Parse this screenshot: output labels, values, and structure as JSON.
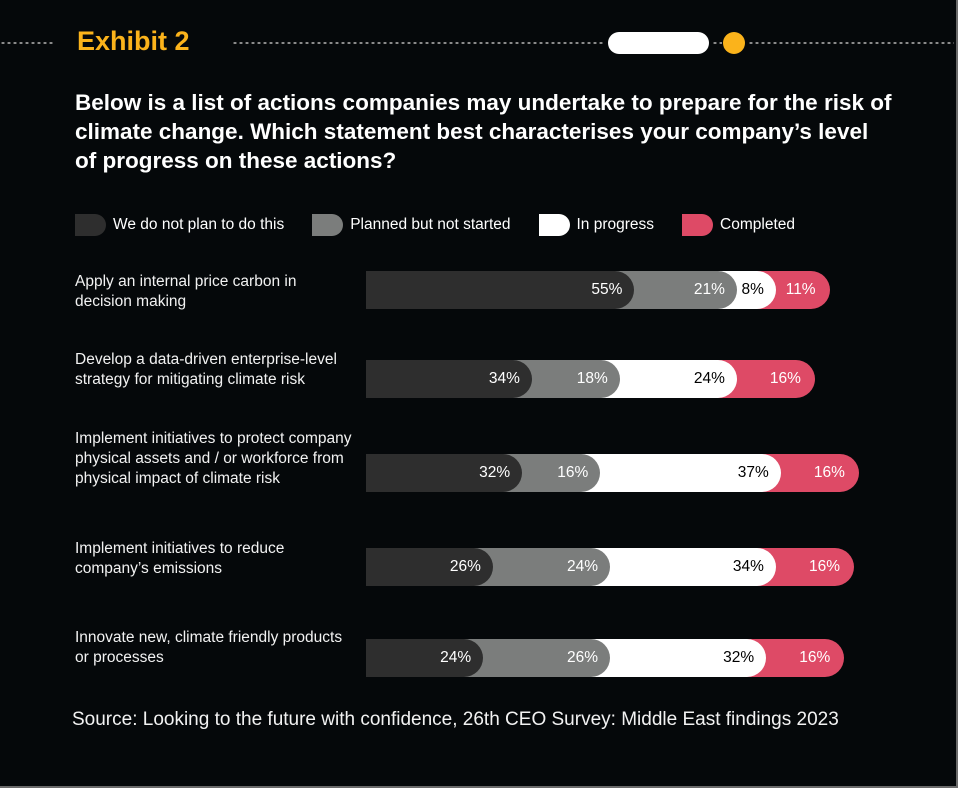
{
  "header": {
    "exhibit_title": "Exhibit 2",
    "question": "Below is a list of actions companies may undertake to prepare for the risk of climate change. Which statement best characterises your company’s level of progress on these actions?"
  },
  "colors": {
    "accent": "#fbb31b",
    "background": "#05080a"
  },
  "chart_data": {
    "type": "bar",
    "orientation": "horizontal",
    "stacked": true,
    "title": "Below is a list of actions companies may undertake to prepare for the risk of climate change. Which statement best characterises your company’s level of progress on these actions?",
    "xlabel": "",
    "ylabel": "",
    "unit": "%",
    "legend_position": "top",
    "categories": [
      "Apply an internal price carbon in decision making",
      "Develop a data-driven enterprise-level strategy for mitigating climate risk",
      "Implement initiatives to protect company physical assets and / or workforce from physical impact of climate risk",
      "Implement initiatives to reduce company’s emissions",
      "Innovate new, climate friendly products or processes"
    ],
    "series": [
      {
        "name": "We do not plan to do this",
        "color": "#2e2e2e",
        "label_color": "#ffffff",
        "values": [
          55,
          34,
          32,
          26,
          24
        ]
      },
      {
        "name": "Planned but not started",
        "color": "#7b7d7c",
        "label_color": "#ffffff",
        "values": [
          21,
          18,
          16,
          24,
          26
        ]
      },
      {
        "name": "In progress",
        "color": "#ffffff",
        "label_color": "#000000",
        "values": [
          8,
          24,
          37,
          34,
          32
        ]
      },
      {
        "name": "Completed",
        "color": "#de4a66",
        "label_color": "#ffffff",
        "values": [
          11,
          16,
          16,
          16,
          16
        ]
      }
    ],
    "data_labels": [
      [
        "55%",
        "21%",
        "8%",
        "11%"
      ],
      [
        "34%",
        "18%",
        "24%",
        "16%"
      ],
      [
        "32%",
        "16%",
        "37%",
        "16%"
      ],
      [
        "26%",
        "24%",
        "34%",
        "16%"
      ],
      [
        "24%",
        "26%",
        "32%",
        "16%"
      ]
    ]
  },
  "source": "Source: Looking to the future with confidence, 26th CEO Survey: Middle East findings 2023"
}
